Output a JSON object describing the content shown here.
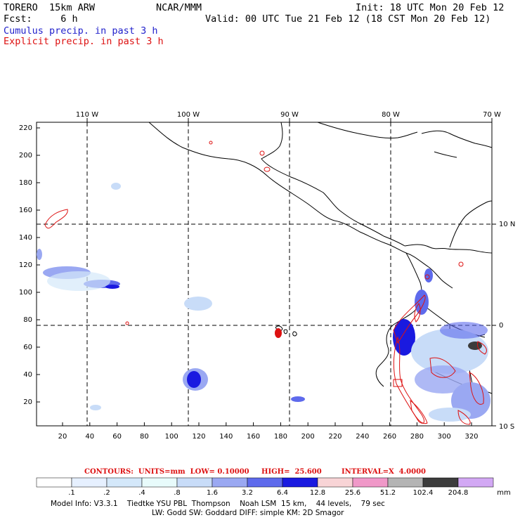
{
  "header": {
    "model": "TORERO  15km ARW",
    "center": "NCAR/MMM",
    "init": "Init: 18 UTC Mon 20 Feb 12",
    "fcst": "Fcst:     6 h",
    "valid": "Valid: 00 UTC Tue 21 Feb 12 (18 CST Mon 20 Feb 12)",
    "line_cumulus": "Cumulus precip. in past 3 h",
    "line_explicit": "Explicit precip. in past 3 h"
  },
  "axes": {
    "top_labels": [
      "110 W",
      "100 W",
      "90 W",
      "80 W",
      "70 W"
    ],
    "right_labels": [
      "10 N",
      "0",
      "10 S"
    ],
    "y_ticks": [
      "220",
      "200",
      "180",
      "160",
      "140",
      "120",
      "100",
      "80",
      "60",
      "40",
      "20"
    ],
    "x_ticks": [
      "20",
      "40",
      "60",
      "80",
      "100",
      "120",
      "140",
      "160",
      "180",
      "200",
      "220",
      "240",
      "260",
      "280",
      "300",
      "320"
    ]
  },
  "contour_info": {
    "units": "CONTOURS:  UNITS=mm  LOW= 0.10000",
    "high": "HIGH=  25.600",
    "interval": "INTERVAL=X  4.0000"
  },
  "colorbar": {
    "labels": [
      ".1",
      ".2",
      ".4",
      ".8",
      "1.6",
      "3.2",
      "6.4",
      "12.8",
      "25.6",
      "51.2",
      "102.4",
      "204.8"
    ],
    "colors": [
      "#ffffff",
      "#e6f0ff",
      "#d4e8fa",
      "#e8fbfb",
      "#c8dcf8",
      "#9aa8f2",
      "#5e6aec",
      "#1a1ae0",
      "#f8d4d6",
      "#f098c8",
      "#b4b4b4",
      "#3c3c3c",
      "#d2a8f4"
    ],
    "unit": "mm"
  },
  "footer": {
    "line1": "Model Info: V3.3.1    Tiedtke YSU PBL  Thompson    Noah LSM  15 km,    44 levels,    79 sec",
    "line2": "LW: Godd SW: Goddard DIFF: simple KM: 2D Smagor"
  }
}
